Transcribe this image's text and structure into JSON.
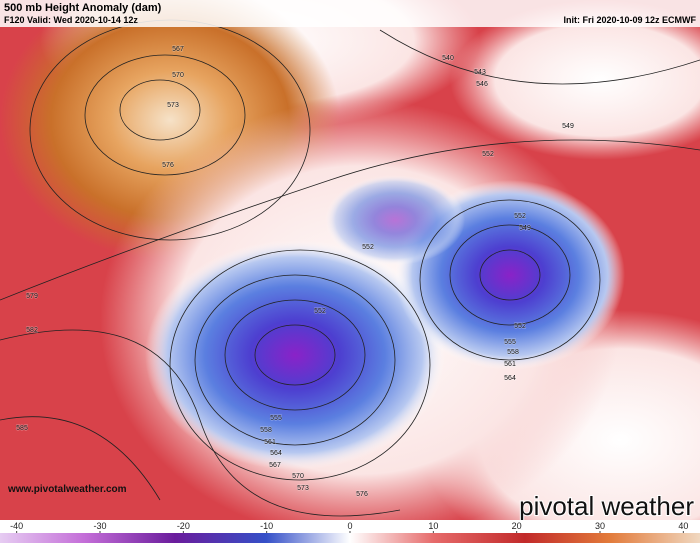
{
  "header": {
    "title": "500 mb Height Anomaly (dam)",
    "valid": "F120 Valid: Wed 2020-10-14 12z",
    "init": "Init: Fri 2020-10-09 12z ECMWF"
  },
  "contour_labels": [
    "567",
    "570",
    "573",
    "576",
    "579",
    "582",
    "585",
    "540",
    "543",
    "546",
    "549",
    "552",
    "552",
    "549",
    "552",
    "552",
    "552",
    "555",
    "558",
    "561",
    "564",
    "555",
    "558",
    "561",
    "564",
    "567",
    "570",
    "573",
    "576"
  ],
  "footer": {
    "url": "www.pivotalweather.com",
    "brand": "pivotal weather"
  },
  "colorbar": {
    "lim": [
      -42,
      42
    ],
    "ticks": [
      -40,
      -30,
      -20,
      -10,
      0,
      10,
      20,
      30,
      40
    ]
  }
}
